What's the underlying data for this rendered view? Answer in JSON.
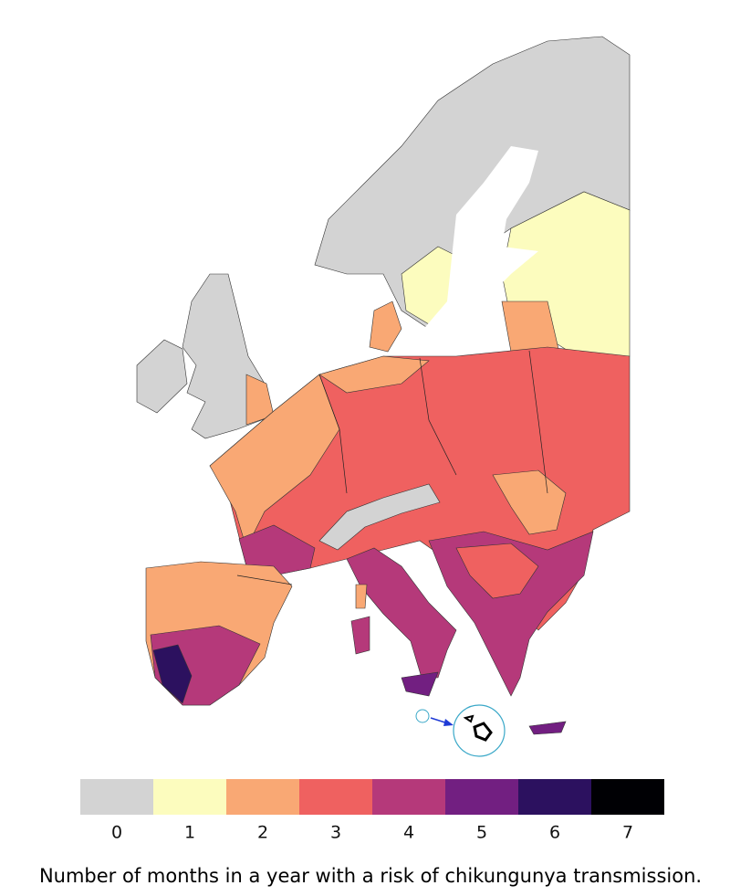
{
  "legend": {
    "items": [
      {
        "label": 0,
        "color": "#d3d3d3"
      },
      {
        "label": 1,
        "color": "#fcfcbe"
      },
      {
        "label": 2,
        "color": "#f9a874"
      },
      {
        "label": 3,
        "color": "#ef6160"
      },
      {
        "label": 4,
        "color": "#b5397a"
      },
      {
        "label": 5,
        "color": "#721f81"
      },
      {
        "label": 6,
        "color": "#2c115f"
      },
      {
        "label": 7,
        "color": "#000004"
      }
    ]
  },
  "caption": "Number of months in a year with a risk of chikungunya transmission."
}
